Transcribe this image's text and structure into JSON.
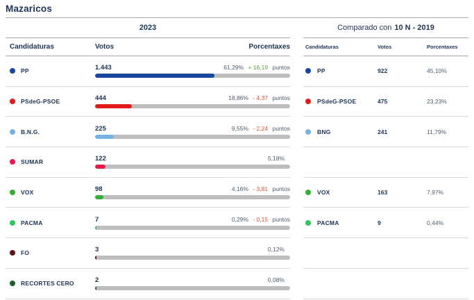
{
  "page": {
    "title": "Mazaricos"
  },
  "colors": {
    "navy_text": "#1c3254",
    "slate_text": "#4c5b6e",
    "diff_positive": "#5aa038",
    "diff_negative": "#e3502f",
    "bar_track": "#bdbdbd",
    "rule_dark": "#a6a6a6",
    "rule_light": "#d9d9d9"
  },
  "left_panel": {
    "year": "2023",
    "columns": {
      "candidaturas": "Candidaturas",
      "votos": "Votos",
      "porcentaxes": "Porcentaxes"
    },
    "rows": [
      {
        "party": "PP",
        "color": "#17479e",
        "votes": "1.443",
        "pct": "61,29%",
        "pct_value": 61.29,
        "diff": "+ 16,19",
        "diff_dir": "up",
        "puntos": "puntos"
      },
      {
        "party": "PSdeG-PSOE",
        "color": "#e01b1b",
        "votes": "444",
        "pct": "18,86%",
        "pct_value": 18.86,
        "diff": "- 4,37",
        "diff_dir": "down",
        "puntos": "puntos"
      },
      {
        "party": "B.N.G.",
        "color": "#76b3e3",
        "votes": "225",
        "pct": "9,55%",
        "pct_value": 9.55,
        "diff": "- 2,24",
        "diff_dir": "down",
        "puntos": "puntos"
      },
      {
        "party": "SUMAR",
        "color": "#ed1950",
        "votes": "122",
        "pct": "5,18%",
        "pct_value": 5.18,
        "diff": "",
        "diff_dir": "",
        "puntos": ""
      },
      {
        "party": "VOX",
        "color": "#2eb135",
        "votes": "98",
        "pct": "4,16%",
        "pct_value": 4.16,
        "diff": "- 3,81",
        "diff_dir": "down",
        "puntos": "puntos"
      },
      {
        "party": "PACMA",
        "color": "#2fc55f",
        "votes": "7",
        "pct": "0,29%",
        "pct_value": 0.29,
        "diff": "- 0,15",
        "diff_dir": "down",
        "puntos": "puntos"
      },
      {
        "party": "FO",
        "color": "#601418",
        "votes": "3",
        "pct": "0,12%",
        "pct_value": 0.12,
        "diff": "",
        "diff_dir": "",
        "puntos": ""
      },
      {
        "party": "RECORTES CERO",
        "color": "#1d5e26",
        "votes": "2",
        "pct": "0,08%",
        "pct_value": 0.08,
        "diff": "",
        "diff_dir": "",
        "puntos": ""
      }
    ]
  },
  "right_panel": {
    "header_prefix": "Comparado con",
    "header_bold": "10 N - 2019",
    "columns": {
      "candidaturas": "Candidaturas",
      "votos": "Votos",
      "porcentaxes": "Porcentaxes"
    },
    "rows": [
      {
        "party": "PP",
        "color": "#17479e",
        "votes": "922",
        "pct": "45,10%"
      },
      {
        "party": "PSdeG-PSOE",
        "color": "#e01b1b",
        "votes": "475",
        "pct": "23,23%"
      },
      {
        "party": "BNG",
        "color": "#76b3e3",
        "votes": "241",
        "pct": "11,79%"
      },
      {
        "empty": true
      },
      {
        "party": "VOX",
        "color": "#2eb135",
        "votes": "163",
        "pct": "7,97%"
      },
      {
        "party": "PACMA",
        "color": "#2fc55f",
        "votes": "9",
        "pct": "0,44%"
      },
      {
        "empty": true
      },
      {
        "empty": true
      }
    ]
  },
  "chart_data": {
    "type": "bar",
    "title": "Mazaricos",
    "categories": [
      "PP",
      "PSdeG-PSOE",
      "B.N.G.",
      "SUMAR",
      "VOX",
      "PACMA",
      "FO",
      "RECORTES CERO"
    ],
    "series": [
      {
        "name": "2023 votos",
        "values": [
          1443,
          444,
          225,
          122,
          98,
          7,
          3,
          2
        ]
      },
      {
        "name": "2023 porcentaxe",
        "values": [
          61.29,
          18.86,
          9.55,
          5.18,
          4.16,
          0.29,
          0.12,
          0.08
        ]
      },
      {
        "name": "10N-2019 votos",
        "values": [
          922,
          475,
          241,
          null,
          163,
          9,
          null,
          null
        ]
      },
      {
        "name": "10N-2019 porcentaxe",
        "values": [
          45.1,
          23.23,
          11.79,
          null,
          7.97,
          0.44,
          null,
          null
        ]
      }
    ],
    "xlabel": "Candidaturas",
    "ylabel": "Porcentaxes",
    "ylim": [
      0,
      100
    ]
  }
}
